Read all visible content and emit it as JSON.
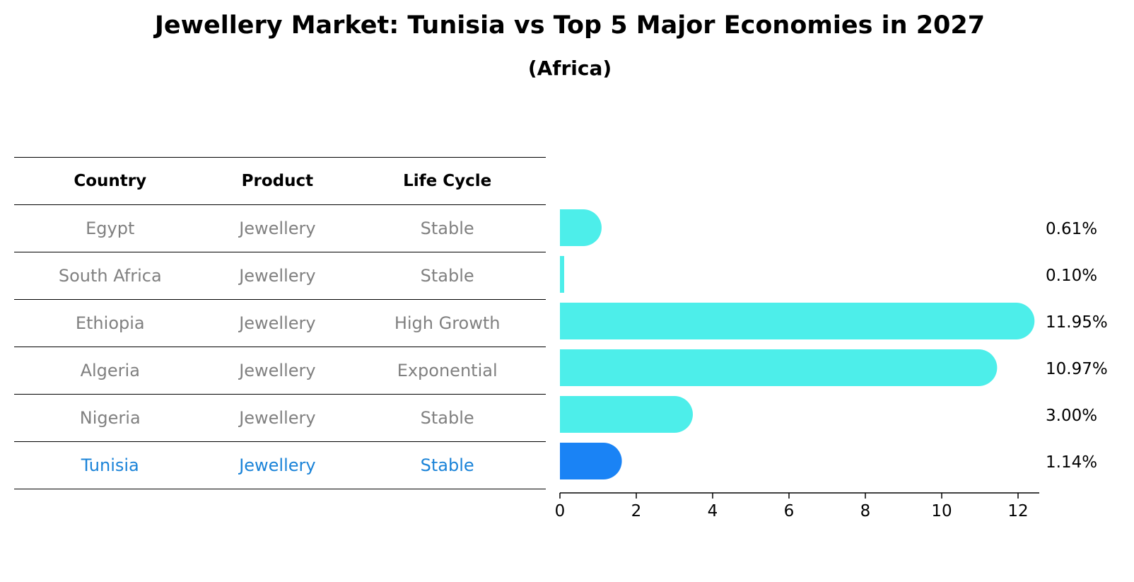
{
  "title": "Jewellery Market: Tunisia vs Top 5 Major Economies in 2027",
  "subtitle": "(Africa)",
  "table": {
    "headers": [
      "Country",
      "Product",
      "Life Cycle"
    ],
    "rows": [
      {
        "country": "Egypt",
        "product": "Jewellery",
        "life_cycle": "Stable"
      },
      {
        "country": "South Africa",
        "product": "Jewellery",
        "life_cycle": "Stable"
      },
      {
        "country": "Ethiopia",
        "product": "Jewellery",
        "life_cycle": "High Growth"
      },
      {
        "country": "Algeria",
        "product": "Jewellery",
        "life_cycle": "Exponential"
      },
      {
        "country": "Nigeria",
        "product": "Jewellery",
        "life_cycle": "Stable"
      },
      {
        "country": "Tunisia",
        "product": "Jewellery",
        "life_cycle": "Stable"
      }
    ]
  },
  "chart_data": {
    "type": "bar",
    "orientation": "horizontal",
    "categories": [
      "Egypt",
      "South Africa",
      "Ethiopia",
      "Algeria",
      "Nigeria",
      "Tunisia"
    ],
    "values": [
      0.61,
      0.1,
      11.95,
      10.97,
      3.0,
      1.14
    ],
    "value_labels": [
      "0.61%",
      "0.10%",
      "11.95%",
      "10.97%",
      "3.00%",
      "1.14%"
    ],
    "highlight": "Tunisia",
    "xlim": [
      0,
      12.6
    ],
    "xticks": [
      0,
      2,
      4,
      6,
      8,
      10,
      12
    ],
    "colors": {
      "bar": "#4deeea",
      "highlight": "#1a83f5",
      "highlight_text": "#1a83d8"
    }
  }
}
